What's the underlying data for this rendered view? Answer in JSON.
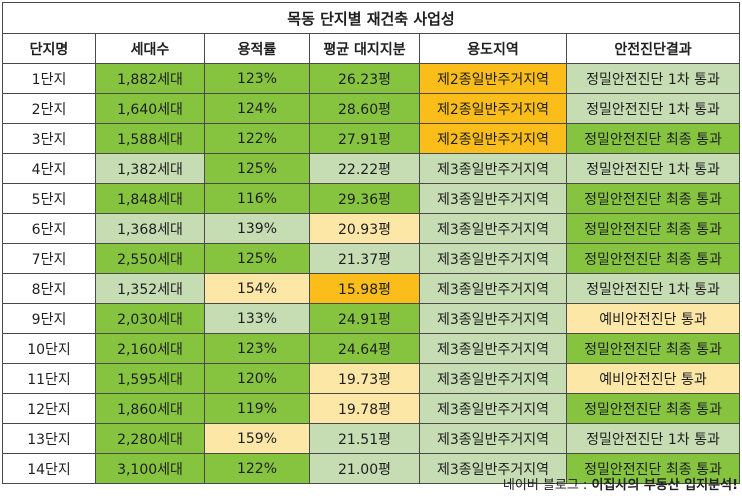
{
  "title": "목동 단지별 재건축 사업성",
  "headers": [
    "단지명",
    "세대수",
    "용적률",
    "평균 대지지분",
    "용도지역",
    "안전진단결과"
  ],
  "rows": [
    {
      "c": [
        "1단지",
        "1,882세대",
        "123%",
        "26.23평",
        "제2종일반주거지역",
        "정밀안전진단 1차 통과"
      ],
      "s": [
        "w",
        "g",
        "g",
        "g",
        "or",
        "lg"
      ]
    },
    {
      "c": [
        "2단지",
        "1,640세대",
        "124%",
        "28.60평",
        "제2종일반주거지역",
        "정밀안전진단 1차 통과"
      ],
      "s": [
        "w",
        "g",
        "g",
        "g",
        "or",
        "lg"
      ]
    },
    {
      "c": [
        "3단지",
        "1,588세대",
        "122%",
        "27.91평",
        "제2종일반주거지역",
        "정밀안전진단 최종 통과"
      ],
      "s": [
        "w",
        "g",
        "g",
        "g",
        "or",
        "g"
      ]
    },
    {
      "c": [
        "4단지",
        "1,382세대",
        "125%",
        "22.22평",
        "제3종일반주거지역",
        "정밀안전진단 1차 통과"
      ],
      "s": [
        "w",
        "lg",
        "g",
        "lg",
        "lg",
        "lg"
      ]
    },
    {
      "c": [
        "5단지",
        "1,848세대",
        "116%",
        "29.36평",
        "제3종일반주거지역",
        "정밀안전진단 최종 통과"
      ],
      "s": [
        "w",
        "g",
        "g",
        "g",
        "lg",
        "g"
      ]
    },
    {
      "c": [
        "6단지",
        "1,368세대",
        "139%",
        "20.93평",
        "제3종일반주거지역",
        "정밀안전진단 최종 통과"
      ],
      "s": [
        "w",
        "lg",
        "lg",
        "ly",
        "lg",
        "g"
      ]
    },
    {
      "c": [
        "7단지",
        "2,550세대",
        "125%",
        "21.37평",
        "제3종일반주거지역",
        "정밀안전진단 최종 통과"
      ],
      "s": [
        "w",
        "g",
        "g",
        "lg",
        "lg",
        "g"
      ]
    },
    {
      "c": [
        "8단지",
        "1,352세대",
        "154%",
        "15.98평",
        "제3종일반주거지역",
        "정밀안전진단 1차 통과"
      ],
      "s": [
        "w",
        "lg",
        "ly",
        "or",
        "lg",
        "lg"
      ]
    },
    {
      "c": [
        "9단지",
        "2,030세대",
        "133%",
        "24.91평",
        "제3종일반주거지역",
        "예비안전진단 통과"
      ],
      "s": [
        "w",
        "g",
        "lg",
        "g",
        "lg",
        "ly"
      ]
    },
    {
      "c": [
        "10단지",
        "2,160세대",
        "123%",
        "24.64평",
        "제3종일반주거지역",
        "정밀안전진단 최종 통과"
      ],
      "s": [
        "w",
        "g",
        "g",
        "g",
        "lg",
        "g"
      ]
    },
    {
      "c": [
        "11단지",
        "1,595세대",
        "120%",
        "19.73평",
        "제3종일반주거지역",
        "예비안전진단 통과"
      ],
      "s": [
        "w",
        "g",
        "g",
        "ly",
        "lg",
        "ly"
      ]
    },
    {
      "c": [
        "12단지",
        "1,860세대",
        "119%",
        "19.78평",
        "제3종일반주거지역",
        "정밀안전진단 최종 통과"
      ],
      "s": [
        "w",
        "g",
        "g",
        "ly",
        "lg",
        "g"
      ]
    },
    {
      "c": [
        "13단지",
        "2,280세대",
        "159%",
        "21.51평",
        "제3종일반주거지역",
        "정밀안전진단 1차 통과"
      ],
      "s": [
        "w",
        "g",
        "ly",
        "lg",
        "lg",
        "lg"
      ]
    },
    {
      "c": [
        "14단지",
        "3,100세대",
        "122%",
        "21.00평",
        "제3종일반주거지역",
        "정밀안전진단 최종 통과"
      ],
      "s": [
        "w",
        "g",
        "g",
        "lg",
        "lg",
        "g"
      ]
    }
  ],
  "footer": {
    "prefix": "네이버 블로그 : ",
    "bold": "이집사의 부동산 입지분석!"
  },
  "colors": {
    "green": "#86c440",
    "light_green": "#c6dcb3",
    "light_yellow": "#fde7a6",
    "orange": "#fbbd1a"
  }
}
